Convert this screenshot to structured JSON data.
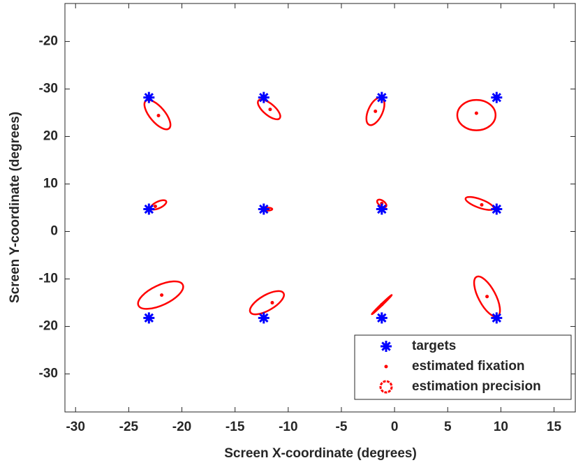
{
  "chart_data": {
    "type": "scatter",
    "xlabel": "Screen X-coordinate (degrees)",
    "ylabel": "Screen Y-coordinate (degrees)",
    "xlim": [
      -31,
      17
    ],
    "ylim": [
      -38,
      48
    ],
    "xticks": [
      -30,
      -25,
      -20,
      -15,
      -10,
      -5,
      0,
      5,
      10,
      15
    ],
    "yticks": [
      {
        "value": 40,
        "label": "-20"
      },
      {
        "value": 30,
        "label": "-30"
      },
      20,
      10,
      0,
      -10,
      -20,
      -30
    ],
    "legend": "lower right",
    "series": [
      {
        "name": "targets",
        "color": "#0000ff",
        "marker": "asterisk",
        "x": [
          -23.1,
          -12.3,
          -1.2,
          9.6,
          -23.1,
          -12.3,
          -1.2,
          9.6,
          -23.1,
          -12.3,
          -1.2,
          9.6
        ],
        "y": [
          28.2,
          28.2,
          28.2,
          28.2,
          4.7,
          4.7,
          4.7,
          4.7,
          -18.2,
          -18.2,
          -18.2,
          -18.2
        ]
      },
      {
        "name": "estimated fixation",
        "color": "#ff0000",
        "marker": "dot",
        "x": [
          -22.2,
          -11.7,
          -1.8,
          7.7,
          -22.5,
          -11.9,
          -1.2,
          8.2,
          -21.9,
          -11.5,
          -1.2,
          8.7
        ],
        "y": [
          24.4,
          25.7,
          25.3,
          24.9,
          5.3,
          4.7,
          5.9,
          5.6,
          -13.4,
          -15.0,
          -15.4,
          -13.7
        ]
      },
      {
        "name": "estimation precision",
        "color": "#ff0000",
        "marker": "ellipse",
        "x": [
          -22.3,
          -11.8,
          -1.8,
          7.7,
          -22.2,
          -11.9,
          -1.2,
          8.0,
          -22.0,
          -12.0,
          -1.2,
          8.7
        ],
        "y": [
          24.6,
          25.7,
          25.3,
          24.5,
          5.6,
          4.7,
          5.9,
          5.9,
          -13.4,
          -15.0,
          -15.4,
          -13.7
        ],
        "rx": [
          1.7,
          1.3,
          1.4,
          1.8,
          0.8,
          0.4,
          0.5,
          1.4,
          2.3,
          1.8,
          1.3,
          2.1
        ],
        "ry": [
          1.6,
          1.2,
          1.5,
          3.2,
          0.7,
          0.3,
          0.6,
          0.9,
          2.1,
          1.6,
          0.15,
          1.8
        ],
        "angle": [
          50,
          40,
          -65,
          0,
          -25,
          0,
          35,
          20,
          -25,
          -30,
          -44,
          62
        ]
      }
    ]
  }
}
